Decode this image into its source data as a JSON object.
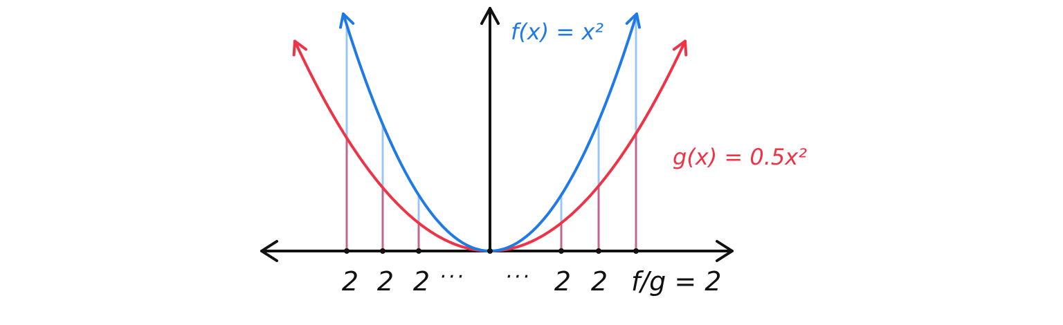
{
  "colors": {
    "axis": "#111111",
    "f_curve": "#1f7ae8",
    "g_curve": "#ee3346",
    "f_drop": "#9cc6f2",
    "g_drop": "#c0678f"
  },
  "labels": {
    "f_function": "f(x) = x²",
    "g_function": "g(x) = 0.5x²",
    "left_ticks": [
      "2",
      "2",
      "2"
    ],
    "left_ellipsis": "···",
    "right_ellipsis": "···",
    "right_ticks": [
      "2",
      "2"
    ],
    "ratio_label": "f/g = 2"
  }
}
